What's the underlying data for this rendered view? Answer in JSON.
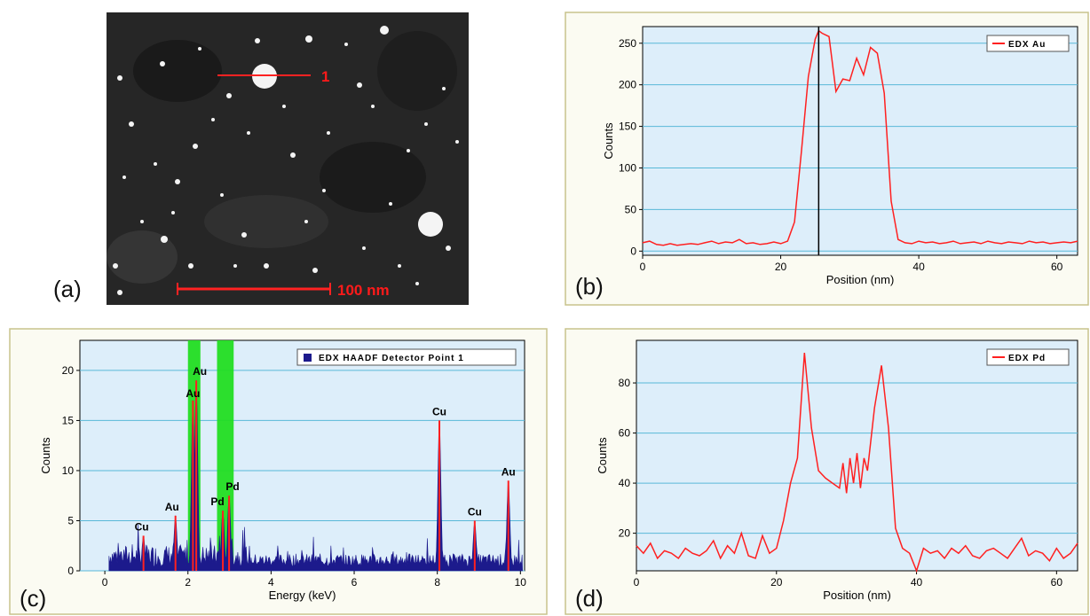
{
  "panels": {
    "a": {
      "letter": "(a)",
      "scale_label": "100 nm",
      "line_marker": "1"
    },
    "b": {
      "letter": "(b)"
    },
    "c": {
      "letter": "(c)"
    },
    "d": {
      "letter": "(d)"
    }
  },
  "colors": {
    "plot_bg": "#ddeefa",
    "grid": "#58b8d8",
    "line": "#ff2020",
    "spectrum_fill": "#1c1a8c",
    "highlight": "#22dd22",
    "frame_bg": "#fbfbf2",
    "frame_border": "#c8c38c"
  },
  "chart_data": [
    {
      "id": "b",
      "type": "line",
      "xlabel": "Position (nm)",
      "ylabel": "Counts",
      "xlim": [
        0,
        63
      ],
      "ylim": [
        -5,
        270
      ],
      "xticks": [
        "0",
        "20",
        "40",
        "60"
      ],
      "xtick_values": [
        0,
        20,
        40,
        60
      ],
      "yticks": [
        "0",
        "50",
        "100",
        "150",
        "200",
        "250"
      ],
      "ytick_values": [
        0,
        50,
        100,
        150,
        200,
        250
      ],
      "grid": "horizontal",
      "legend": "top-right",
      "series": [
        {
          "name": "EDX Au"
        }
      ],
      "cursor_x": 25.5,
      "x": [
        0,
        1,
        2,
        3,
        4,
        5,
        6,
        7,
        8,
        9,
        10,
        11,
        12,
        13,
        14,
        15,
        16,
        17,
        18,
        19,
        20,
        21,
        22,
        23,
        24,
        25,
        25.5,
        26,
        27,
        28,
        29,
        30,
        31,
        32,
        33,
        34,
        35,
        36,
        37,
        38,
        39,
        40,
        41,
        42,
        43,
        44,
        45,
        46,
        47,
        48,
        49,
        50,
        51,
        52,
        53,
        54,
        55,
        56,
        57,
        58,
        59,
        60,
        61,
        62,
        63
      ],
      "y": [
        10,
        12,
        8,
        7,
        9,
        7,
        8,
        9,
        8,
        10,
        12,
        9,
        11,
        10,
        14,
        9,
        10,
        8,
        9,
        11,
        9,
        12,
        35,
        120,
        210,
        255,
        265,
        262,
        258,
        192,
        207,
        205,
        232,
        212,
        245,
        238,
        190,
        60,
        14,
        10,
        9,
        12,
        10,
        11,
        9,
        10,
        12,
        9,
        10,
        11,
        9,
        12,
        10,
        9,
        11,
        10,
        9,
        12,
        10,
        11,
        9,
        10,
        11,
        10,
        12
      ]
    },
    {
      "id": "c",
      "type": "bar",
      "xlabel": "Energy (keV)",
      "ylabel": "Counts",
      "xlim": [
        -0.6,
        10.1
      ],
      "ylim": [
        0,
        23
      ],
      "xticks": [
        "0",
        "2",
        "4",
        "6",
        "8",
        "10"
      ],
      "xtick_values": [
        0,
        2,
        4,
        6,
        8,
        10
      ],
      "yticks": [
        "0",
        "5",
        "10",
        "15",
        "20"
      ],
      "ytick_values": [
        0,
        5,
        10,
        15,
        20
      ],
      "grid": "horizontal",
      "legend": "top-right",
      "series": [
        {
          "name": "EDX HAADF Detector Point 1"
        }
      ],
      "highlight_bands": [
        [
          2.0,
          2.3
        ],
        [
          2.7,
          3.1
        ]
      ],
      "peaks": [
        {
          "label": "Cu",
          "energy": 0.93,
          "counts": 3.5
        },
        {
          "label": "Au",
          "energy": 1.7,
          "counts": 5.5
        },
        {
          "label": "Au",
          "energy": 2.12,
          "counts": 17
        },
        {
          "label": "Au",
          "energy": 2.2,
          "counts": 19
        },
        {
          "label": "Pd",
          "energy": 2.84,
          "counts": 6
        },
        {
          "label": "Pd",
          "energy": 2.99,
          "counts": 7.5
        },
        {
          "label": "Cu",
          "energy": 8.05,
          "counts": 15
        },
        {
          "label": "Cu",
          "energy": 8.9,
          "counts": 5
        },
        {
          "label": "Au",
          "energy": 9.71,
          "counts": 9
        }
      ]
    },
    {
      "id": "d",
      "type": "line",
      "xlabel": "Position (nm)",
      "ylabel": "Counts",
      "xlim": [
        0,
        63
      ],
      "ylim": [
        5,
        97
      ],
      "xticks": [
        "0",
        "20",
        "40",
        "60"
      ],
      "xtick_values": [
        0,
        20,
        40,
        60
      ],
      "yticks": [
        "20",
        "40",
        "60",
        "80"
      ],
      "ytick_values": [
        20,
        40,
        60,
        80
      ],
      "grid": "horizontal",
      "legend": "top-right",
      "series": [
        {
          "name": "EDX Pd"
        }
      ],
      "x": [
        0,
        1,
        2,
        3,
        4,
        5,
        6,
        7,
        8,
        9,
        10,
        11,
        12,
        13,
        14,
        15,
        16,
        17,
        18,
        19,
        20,
        21,
        22,
        23,
        24,
        25,
        26,
        27,
        28,
        29,
        29.5,
        30,
        30.5,
        31,
        31.5,
        32,
        32.5,
        33,
        34,
        35,
        36,
        37,
        38,
        39,
        40,
        41,
        42,
        43,
        44,
        45,
        46,
        47,
        48,
        49,
        50,
        51,
        52,
        53,
        54,
        55,
        56,
        57,
        58,
        59,
        60,
        61,
        62,
        63
      ],
      "y": [
        15,
        12,
        16,
        10,
        13,
        12,
        10,
        14,
        12,
        11,
        13,
        17,
        10,
        15,
        12,
        20,
        11,
        10,
        19,
        12,
        14,
        25,
        40,
        50,
        92,
        62,
        45,
        42,
        40,
        38,
        48,
        36,
        50,
        40,
        52,
        38,
        50,
        45,
        70,
        87,
        62,
        22,
        14,
        12,
        5,
        14,
        12,
        13,
        10,
        14,
        12,
        15,
        11,
        10,
        13,
        14,
        12,
        10,
        14,
        18,
        11,
        13,
        12,
        9,
        14,
        10,
        12,
        16
      ]
    }
  ]
}
